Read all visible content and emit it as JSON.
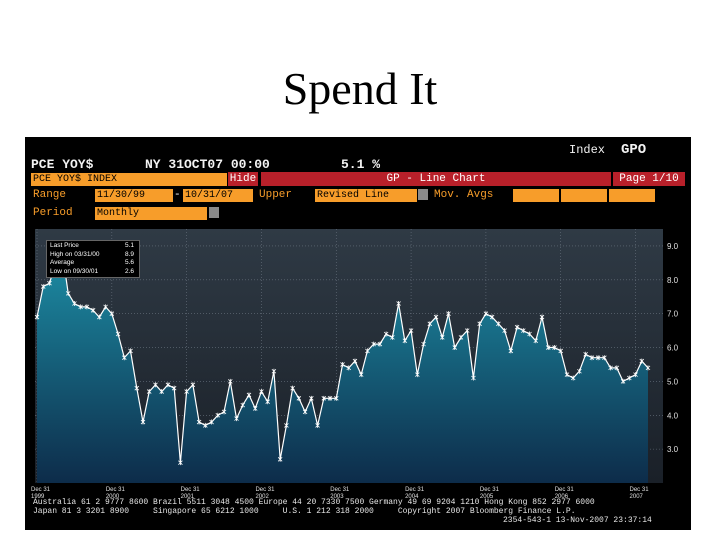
{
  "slide": {
    "title": "Spend It"
  },
  "header": {
    "ticker": "PCE YOY$",
    "timestamp": "NY 31OCT07 00:00",
    "value": "5.1 %",
    "index_label": "Index",
    "function_code": "GPO"
  },
  "controls": {
    "security": "PCE YOY$ INDEX",
    "hide_label": "Hide",
    "chart_title": "GP - Line Chart",
    "page": "Page 1/10",
    "range_label": "Range",
    "range_start": "11/30/99",
    "range_sep": "-",
    "range_end": "10/31/07",
    "upper_label": "Upper",
    "upper_value": "Revised Line",
    "lower_label": "Mov. Avgs",
    "period_label": "Period",
    "period_value": "Monthly"
  },
  "legend": {
    "rows": [
      {
        "label": "Last Price",
        "value": "5.1"
      },
      {
        "label": "High on 03/31/00",
        "value": "8.9"
      },
      {
        "label": "Average",
        "value": "5.6"
      },
      {
        "label": "Low on 09/30/01",
        "value": "2.6"
      }
    ]
  },
  "footer": {
    "line1": "Australia 61 2 9777 8600 Brazil 5511 3048 4500 Europe 44 20 7330 7500 Germany 49 69 9204 1210 Hong Kong 852 2977 6000",
    "line2": "Japan 81 3 3201 8900     Singapore 65 6212 1000     U.S. 1 212 318 2000     Copyright 2007 Bloomberg Finance L.P.",
    "line3": "2354-543-1 13-Nov-2007 23:37:14"
  },
  "colors": {
    "accent_orange": "#f79d2a",
    "title_red": "#b8202a",
    "series_line": "#ffffff",
    "area_top": "#1d8fa6",
    "area_bottom": "#0d2c4a"
  },
  "chart_data": {
    "type": "area",
    "title": "",
    "xlabel": "",
    "ylabel": "",
    "ylim": [
      2.0,
      9.5
    ],
    "yticks": [
      "9.0",
      "8.0",
      "7.0",
      "6.0",
      "5.0",
      "4.0",
      "3.0"
    ],
    "xticks": [
      {
        "month": "Dec 31",
        "year": "1999",
        "t": 0
      },
      {
        "month": "Dec 31",
        "year": "2000",
        "t": 12
      },
      {
        "month": "Dec 31",
        "year": "2001",
        "t": 24
      },
      {
        "month": "Dec 31",
        "year": "2002",
        "t": 36
      },
      {
        "month": "Dec 31",
        "year": "2003",
        "t": 48
      },
      {
        "month": "Dec 31",
        "year": "2004",
        "t": 60
      },
      {
        "month": "Dec 31",
        "year": "2005",
        "t": 72
      },
      {
        "month": "Dec 31",
        "year": "2006",
        "t": 84
      },
      {
        "month": "Dec 31",
        "year": "2007",
        "t": 96
      }
    ],
    "grid": true,
    "series": [
      {
        "values": [
          6.9,
          7.8,
          7.9,
          8.5,
          8.9,
          7.6,
          7.3,
          7.2,
          7.2,
          7.1,
          6.9,
          7.2,
          7.0,
          6.4,
          5.7,
          5.9,
          4.8,
          3.8,
          4.7,
          4.9,
          4.7,
          4.9,
          4.8,
          2.6,
          4.7,
          4.9,
          3.8,
          3.7,
          3.8,
          4.0,
          4.1,
          5.0,
          3.9,
          4.3,
          4.6,
          4.2,
          4.7,
          4.4,
          5.3,
          2.7,
          3.7,
          4.8,
          4.5,
          4.1,
          4.5,
          3.7,
          4.5,
          4.5,
          4.5,
          5.5,
          5.4,
          5.6,
          5.2,
          5.9,
          6.1,
          6.1,
          6.4,
          6.3,
          7.3,
          6.2,
          6.5,
          5.2,
          6.1,
          6.7,
          6.9,
          6.3,
          7.0,
          6.0,
          6.3,
          6.5,
          5.1,
          6.7,
          7.0,
          6.9,
          6.7,
          6.5,
          5.9,
          6.6,
          6.5,
          6.4,
          6.2,
          6.9,
          6.0,
          6.0,
          5.9,
          5.2,
          5.1,
          5.3,
          5.8,
          5.7,
          5.7,
          5.7,
          5.4,
          5.4,
          5.0,
          5.1,
          5.2,
          5.6,
          5.4
        ]
      }
    ]
  }
}
